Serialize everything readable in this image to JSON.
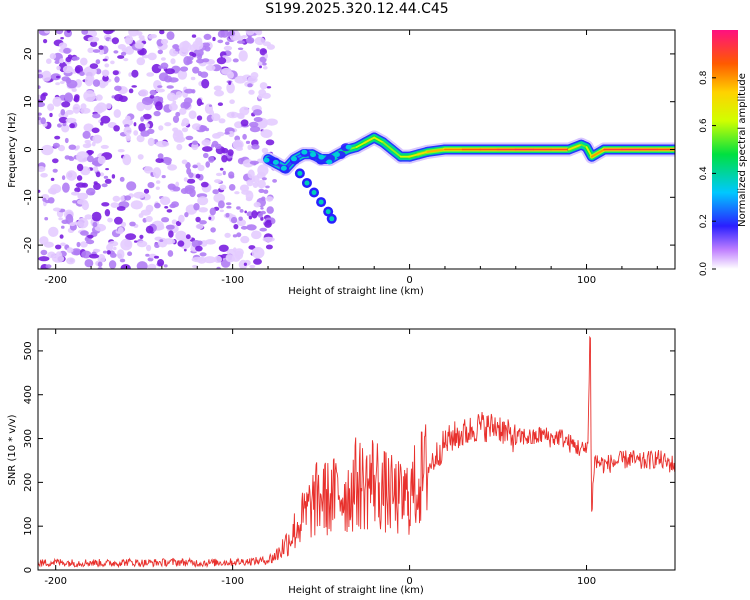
{
  "figure_title": "S199.2025.320.12.44.C45",
  "colors": {
    "snr_line": "#e8302c",
    "scatter": "#7a1fe0",
    "axis": "#000000"
  },
  "chart_data": [
    {
      "type": "heatmap",
      "title": "S199.2025.320.12.44.C45",
      "xlabel": "Height of straight line (km)",
      "ylabel": "Frequency (Hz)",
      "xlim": [
        -210,
        150
      ],
      "ylim": [
        -25,
        25
      ],
      "xticks": [
        -200,
        -100,
        0,
        100
      ],
      "yticks": [
        -20,
        -10,
        0,
        10,
        20
      ],
      "colorbar": {
        "label": "Normalized spectral amplitude",
        "range": [
          0,
          1
        ],
        "ticks": [
          0.0,
          0.2,
          0.4,
          0.6,
          0.8
        ]
      },
      "noise_region": {
        "x_range": [
          -210,
          -78
        ],
        "y_range": [
          -25,
          25
        ],
        "amplitude": 0.1
      },
      "ridge": [
        {
          "x": -80,
          "y": -2,
          "amp": 0.25
        },
        {
          "x": -75,
          "y": -3,
          "amp": 0.2
        },
        {
          "x": -70,
          "y": -4,
          "amp": 0.2
        },
        {
          "x": -65,
          "y": -2,
          "amp": 0.25
        },
        {
          "x": -60,
          "y": -1,
          "amp": 0.3
        },
        {
          "x": -55,
          "y": -1,
          "amp": 0.3
        },
        {
          "x": -50,
          "y": -2,
          "amp": 0.35
        },
        {
          "x": -45,
          "y": -2,
          "amp": 0.4
        },
        {
          "x": -40,
          "y": -1,
          "amp": 0.45
        },
        {
          "x": -35,
          "y": 0,
          "amp": 0.55
        },
        {
          "x": -30,
          "y": 0.5,
          "amp": 0.6
        },
        {
          "x": -25,
          "y": 1.5,
          "amp": 0.65
        },
        {
          "x": -20,
          "y": 2.5,
          "amp": 0.7
        },
        {
          "x": -15,
          "y": 1.5,
          "amp": 0.6
        },
        {
          "x": -10,
          "y": 0,
          "amp": 0.55
        },
        {
          "x": -5,
          "y": -1.5,
          "amp": 0.6
        },
        {
          "x": 0,
          "y": -1.5,
          "amp": 0.65
        },
        {
          "x": 5,
          "y": -1,
          "amp": 0.7
        },
        {
          "x": 10,
          "y": -0.5,
          "amp": 0.75
        },
        {
          "x": 20,
          "y": 0,
          "amp": 0.8
        },
        {
          "x": 30,
          "y": 0,
          "amp": 0.85
        },
        {
          "x": 40,
          "y": 0,
          "amp": 0.9
        },
        {
          "x": 50,
          "y": 0,
          "amp": 0.9
        },
        {
          "x": 60,
          "y": 0,
          "amp": 0.95
        },
        {
          "x": 70,
          "y": 0,
          "amp": 0.95
        },
        {
          "x": 80,
          "y": 0,
          "amp": 0.9
        },
        {
          "x": 90,
          "y": 0,
          "amp": 0.9
        },
        {
          "x": 97,
          "y": 1,
          "amp": 0.5
        },
        {
          "x": 100,
          "y": 0.5,
          "amp": 0.6
        },
        {
          "x": 103,
          "y": -1.5,
          "amp": 0.7
        },
        {
          "x": 110,
          "y": 0,
          "amp": 0.9
        },
        {
          "x": 120,
          "y": 0,
          "amp": 0.95
        },
        {
          "x": 130,
          "y": 0,
          "amp": 0.95
        },
        {
          "x": 140,
          "y": 0,
          "amp": 0.9
        },
        {
          "x": 150,
          "y": 0,
          "amp": 0.9
        }
      ],
      "branch": [
        {
          "x": -62,
          "y": -5
        },
        {
          "x": -58,
          "y": -7
        },
        {
          "x": -54,
          "y": -9
        },
        {
          "x": -50,
          "y": -11
        },
        {
          "x": -46,
          "y": -13
        },
        {
          "x": -44,
          "y": -14.5
        }
      ]
    },
    {
      "type": "line",
      "xlabel": "Height of straight line (km)",
      "ylabel": "SNR (10 * v/v)",
      "xlim": [
        -210,
        150
      ],
      "ylim": [
        0,
        550
      ],
      "xticks": [
        -200,
        -100,
        0,
        100
      ],
      "yticks": [
        0,
        100,
        200,
        300,
        400,
        500
      ],
      "series": [
        {
          "name": "SNR",
          "x": [
            -210,
            -200,
            -190,
            -180,
            -170,
            -160,
            -150,
            -140,
            -130,
            -120,
            -110,
            -100,
            -90,
            -80,
            -75,
            -70,
            -65,
            -60,
            -55,
            -50,
            -45,
            -40,
            -35,
            -30,
            -25,
            -20,
            -15,
            -10,
            -5,
            0,
            5,
            10,
            15,
            20,
            25,
            30,
            35,
            40,
            45,
            50,
            55,
            60,
            65,
            70,
            75,
            80,
            85,
            90,
            95,
            100,
            101,
            102,
            103,
            104,
            105,
            110,
            115,
            120,
            125,
            130,
            135,
            140,
            145,
            150
          ],
          "values": [
            15,
            18,
            16,
            17,
            15,
            18,
            16,
            17,
            18,
            16,
            17,
            18,
            20,
            22,
            35,
            60,
            90,
            120,
            150,
            170,
            160,
            180,
            170,
            200,
            190,
            210,
            180,
            170,
            160,
            170,
            200,
            230,
            260,
            290,
            305,
            310,
            320,
            330,
            325,
            330,
            310,
            300,
            305,
            300,
            310,
            300,
            305,
            290,
            280,
            270,
            330,
            540,
            110,
            230,
            250,
            240,
            245,
            250,
            255,
            245,
            250,
            255,
            245,
            240
          ]
        }
      ]
    }
  ]
}
